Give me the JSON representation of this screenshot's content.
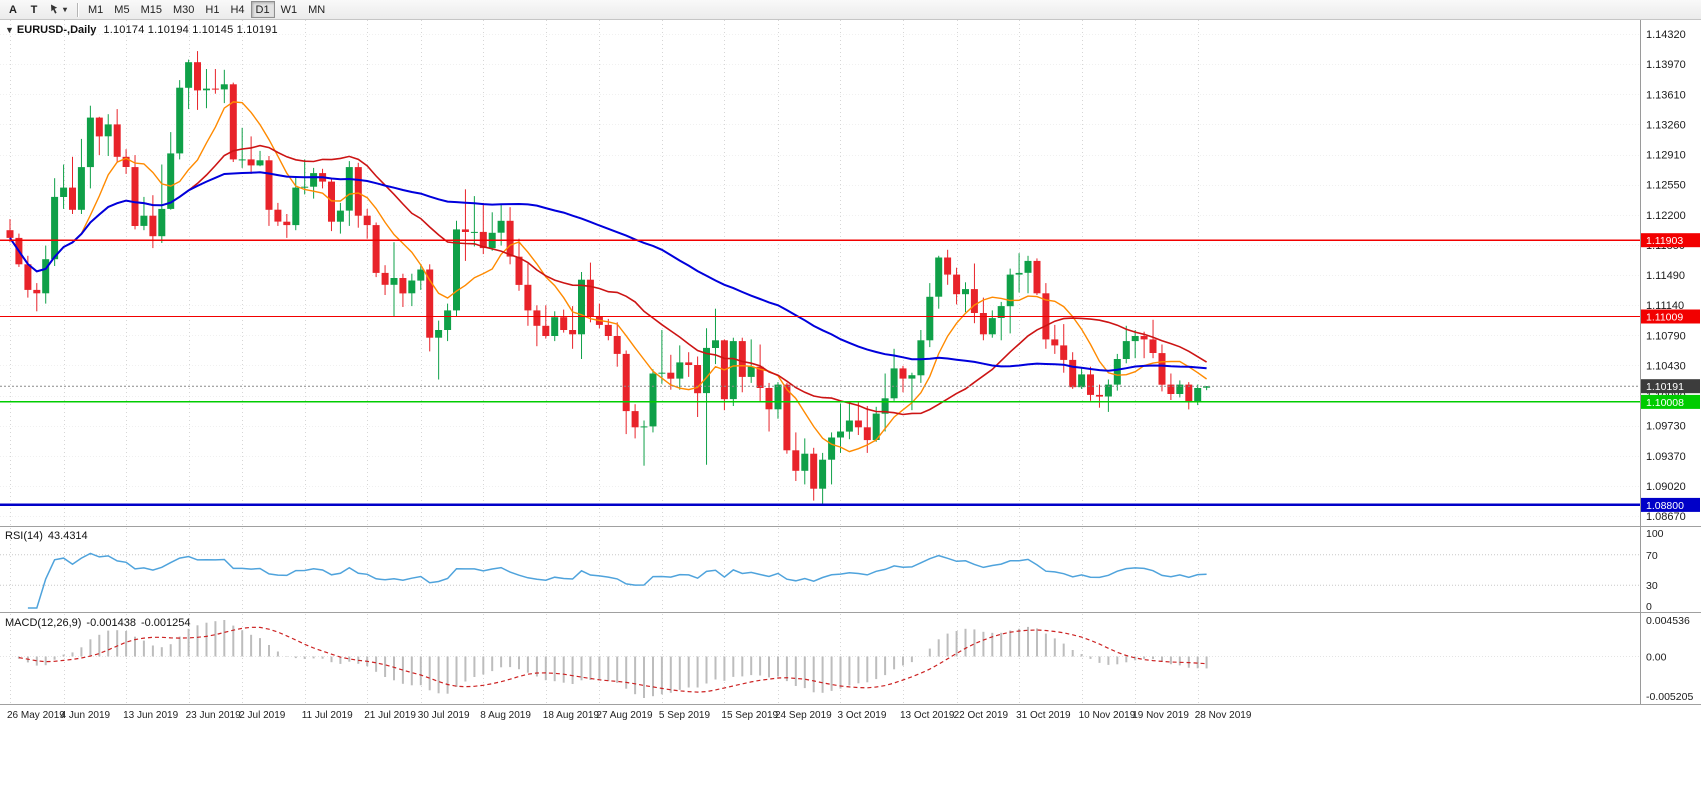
{
  "toolbar": {
    "tool_buttons": [
      {
        "id": "a",
        "label": "A"
      },
      {
        "id": "t",
        "label": "T"
      }
    ],
    "arrows_caret": "▾",
    "timeframes": [
      "M1",
      "M5",
      "M15",
      "M30",
      "H1",
      "H4",
      "D1",
      "W1",
      "MN"
    ],
    "active_timeframe": "D1"
  },
  "chart": {
    "symbol_title": "EURUSD-,Daily",
    "ohlc_line": "1.10174 1.10194 1.10145 1.10191",
    "dropdown_glyph": "▼",
    "price_axis": {
      "top_value": 1.1432,
      "bottom_value": 1.0867,
      "ticks": [
        "1.14320",
        "1.13970",
        "1.13610",
        "1.13260",
        "1.12910",
        "1.12550",
        "1.12200",
        "1.11850",
        "1.11490",
        "1.11140",
        "1.10790",
        "1.10430",
        "1.10080",
        "1.09730",
        "1.09370",
        "1.09020",
        "1.08670"
      ]
    },
    "levels": [
      {
        "price": 1.11903,
        "label": "1.11903",
        "color": "#F20000",
        "width": 1.2
      },
      {
        "price": 1.11009,
        "label": "1.11009",
        "color": "#F20000",
        "width": 1.2
      },
      {
        "price": 1.10008,
        "label": "1.10008",
        "color": "#00CC00",
        "width": 1.4
      },
      {
        "price": 1.088,
        "label": "1.08800",
        "color": "#0000C8",
        "width": 2.4
      }
    ],
    "current_price": {
      "value": 1.10191,
      "label": "1.10191",
      "tag_bg": "#3C3C3C",
      "line_color": "#8a8a8a"
    },
    "colors": {
      "up": "#0FA048",
      "down": "#E8232A",
      "ma_fast": "#FF8A00",
      "ma_mid": "#CC1414",
      "ma_slow": "#0000DC",
      "grid": "#D6D6D6"
    }
  },
  "indicators": {
    "rsi": {
      "name": "RSI(14)",
      "value": "43.4314",
      "axis": [
        "100",
        "70",
        "30",
        "0"
      ],
      "levels": [
        70,
        30
      ],
      "color": "#4FA3DC"
    },
    "macd": {
      "name": "MACD(12,26,9)",
      "value_main": "-0.001438",
      "value_signal": "-0.001254",
      "axis_top": "0.004536",
      "axis_zero": "0.00",
      "axis_bottom": "-0.005205",
      "hist_color": "#BDBDBD",
      "signal_color": "#CC2222"
    }
  },
  "chart_data": {
    "type": "candlestick",
    "symbol": "EURUSD-",
    "timeframe": "Daily",
    "title": "EURUSD-,Daily 1.10174 1.10194 1.10145 1.10191",
    "ylim": [
      1.0867,
      1.1432
    ],
    "x_ticks": [
      {
        "label": "26 May 2019",
        "i": 0
      },
      {
        "label": "4 Jun 2019",
        "i": 6
      },
      {
        "label": "13 Jun 2019",
        "i": 13
      },
      {
        "label": "23 Jun 2019",
        "i": 20
      },
      {
        "label": "2 Jul 2019",
        "i": 26
      },
      {
        "label": "11 Jul 2019",
        "i": 33
      },
      {
        "label": "21 Jul 2019",
        "i": 40
      },
      {
        "label": "30 Jul 2019",
        "i": 46
      },
      {
        "label": "8 Aug 2019",
        "i": 53
      },
      {
        "label": "18 Aug 2019",
        "i": 60
      },
      {
        "label": "27 Aug 2019",
        "i": 66
      },
      {
        "label": "5 Sep 2019",
        "i": 73
      },
      {
        "label": "15 Sep 2019",
        "i": 80
      },
      {
        "label": "24 Sep 2019",
        "i": 86
      },
      {
        "label": "3 Oct 2019",
        "i": 93
      },
      {
        "label": "13 Oct 2019",
        "i": 100
      },
      {
        "label": "22 Oct 2019",
        "i": 106
      },
      {
        "label": "31 Oct 2019",
        "i": 113
      },
      {
        "label": "10 Nov 2019",
        "i": 120
      },
      {
        "label": "19 Nov 2019",
        "i": 126
      },
      {
        "label": "28 Nov 2019",
        "i": 133
      }
    ],
    "candles": [
      [
        1.1202,
        1.1215,
        1.1188,
        1.1193
      ],
      [
        1.1193,
        1.1198,
        1.1159,
        1.1162
      ],
      [
        1.1162,
        1.1172,
        1.1123,
        1.1132
      ],
      [
        1.1132,
        1.114,
        1.1107,
        1.1128
      ],
      [
        1.1128,
        1.1184,
        1.1116,
        1.1168
      ],
      [
        1.1168,
        1.1263,
        1.116,
        1.1241
      ],
      [
        1.1241,
        1.1279,
        1.1227,
        1.1252
      ],
      [
        1.1252,
        1.1288,
        1.1221,
        1.1226
      ],
      [
        1.1226,
        1.1309,
        1.1221,
        1.1276
      ],
      [
        1.1276,
        1.1348,
        1.1251,
        1.1334
      ],
      [
        1.1334,
        1.1335,
        1.129,
        1.1312
      ],
      [
        1.1312,
        1.1338,
        1.1289,
        1.1326
      ],
      [
        1.1326,
        1.1344,
        1.1282,
        1.1288
      ],
      [
        1.1288,
        1.1297,
        1.1268,
        1.1276
      ],
      [
        1.1276,
        1.129,
        1.1203,
        1.1207
      ],
      [
        1.1207,
        1.1241,
        1.1202,
        1.1219
      ],
      [
        1.1219,
        1.1243,
        1.1181,
        1.1195
      ],
      [
        1.1195,
        1.1279,
        1.1187,
        1.1227
      ],
      [
        1.1227,
        1.1317,
        1.1226,
        1.1292
      ],
      [
        1.1292,
        1.1378,
        1.1285,
        1.1369
      ],
      [
        1.1369,
        1.1402,
        1.1344,
        1.1399
      ],
      [
        1.1399,
        1.1412,
        1.1343,
        1.1366
      ],
      [
        1.1366,
        1.1391,
        1.1345,
        1.1368
      ],
      [
        1.1368,
        1.1391,
        1.1362,
        1.1367
      ],
      [
        1.1367,
        1.139,
        1.1351,
        1.1373
      ],
      [
        1.1373,
        1.1375,
        1.1282,
        1.1285
      ],
      [
        1.1285,
        1.1322,
        1.1275,
        1.1285
      ],
      [
        1.1285,
        1.1312,
        1.1268,
        1.1278
      ],
      [
        1.1278,
        1.1295,
        1.1277,
        1.1284
      ],
      [
        1.1284,
        1.1289,
        1.1207,
        1.1226
      ],
      [
        1.1226,
        1.1234,
        1.1207,
        1.1212
      ],
      [
        1.1212,
        1.1221,
        1.1193,
        1.1208
      ],
      [
        1.1208,
        1.1264,
        1.1202,
        1.1252
      ],
      [
        1.1252,
        1.1285,
        1.1244,
        1.1253
      ],
      [
        1.1253,
        1.1275,
        1.1239,
        1.1269
      ],
      [
        1.1269,
        1.1274,
        1.1251,
        1.1259
      ],
      [
        1.1259,
        1.1263,
        1.1201,
        1.1212
      ],
      [
        1.1212,
        1.1234,
        1.1198,
        1.1225
      ],
      [
        1.1225,
        1.1283,
        1.1207,
        1.1276
      ],
      [
        1.1276,
        1.1281,
        1.1205,
        1.1219
      ],
      [
        1.1219,
        1.1227,
        1.1192,
        1.1208
      ],
      [
        1.1208,
        1.1211,
        1.1147,
        1.1152
      ],
      [
        1.1152,
        1.1161,
        1.1126,
        1.1138
      ],
      [
        1.1138,
        1.1188,
        1.1101,
        1.1146
      ],
      [
        1.1146,
        1.1151,
        1.1112,
        1.1128
      ],
      [
        1.1128,
        1.1151,
        1.1113,
        1.1143
      ],
      [
        1.1143,
        1.1162,
        1.1132,
        1.1156
      ],
      [
        1.1156,
        1.1162,
        1.106,
        1.1076
      ],
      [
        1.1076,
        1.1096,
        1.1027,
        1.1085
      ],
      [
        1.1085,
        1.1116,
        1.1072,
        1.1108
      ],
      [
        1.1108,
        1.1213,
        1.1101,
        1.1203
      ],
      [
        1.1203,
        1.125,
        1.1166,
        1.12
      ],
      [
        1.12,
        1.1242,
        1.1183,
        1.12
      ],
      [
        1.12,
        1.1234,
        1.1174,
        1.1181
      ],
      [
        1.1181,
        1.1223,
        1.1178,
        1.1199
      ],
      [
        1.1199,
        1.1232,
        1.1184,
        1.1213
      ],
      [
        1.1213,
        1.1229,
        1.1162,
        1.1171
      ],
      [
        1.1171,
        1.1192,
        1.1131,
        1.1138
      ],
      [
        1.1138,
        1.1163,
        1.109,
        1.1108
      ],
      [
        1.1108,
        1.1114,
        1.1066,
        1.109
      ],
      [
        1.109,
        1.1114,
        1.1075,
        1.1078
      ],
      [
        1.1078,
        1.1107,
        1.1072,
        1.11
      ],
      [
        1.11,
        1.1109,
        1.1082,
        1.1085
      ],
      [
        1.1085,
        1.1113,
        1.1063,
        1.108
      ],
      [
        1.108,
        1.1153,
        1.1051,
        1.1144
      ],
      [
        1.1144,
        1.1164,
        1.1094,
        1.1101
      ],
      [
        1.1101,
        1.1116,
        1.1087,
        1.1091
      ],
      [
        1.1091,
        1.1098,
        1.1073,
        1.1078
      ],
      [
        1.1078,
        1.1094,
        1.1042,
        1.1057
      ],
      [
        1.1057,
        1.1061,
        1.0963,
        1.099
      ],
      [
        1.099,
        1.0998,
        1.0958,
        1.0971
      ],
      [
        1.0971,
        1.0979,
        1.0926,
        1.0972
      ],
      [
        1.0972,
        1.1039,
        1.0965,
        1.1034
      ],
      [
        1.1034,
        1.1085,
        1.1022,
        1.1035
      ],
      [
        1.1035,
        1.1056,
        1.1015,
        1.1028
      ],
      [
        1.1028,
        1.1067,
        1.1015,
        1.1047
      ],
      [
        1.1047,
        1.1059,
        1.103,
        1.1044
      ],
      [
        1.1044,
        1.1054,
        1.0983,
        1.1011
      ],
      [
        1.1011,
        1.1087,
        1.0927,
        1.1064
      ],
      [
        1.1064,
        1.111,
        1.1045,
        1.1073
      ],
      [
        1.1073,
        1.1074,
        1.0991,
        1.1004
      ],
      [
        1.1004,
        1.1076,
        1.0996,
        1.1072
      ],
      [
        1.1072,
        1.1076,
        1.1012,
        1.103
      ],
      [
        1.103,
        1.1074,
        1.1023,
        1.1042
      ],
      [
        1.1042,
        1.1068,
        1.1,
        1.1017
      ],
      [
        1.1017,
        1.1023,
        1.0966,
        1.0992
      ],
      [
        1.0992,
        1.1024,
        1.0981,
        1.1021
      ],
      [
        1.1021,
        1.1023,
        1.094,
        1.0944
      ],
      [
        1.0944,
        1.0965,
        1.0908,
        1.092
      ],
      [
        1.092,
        1.0958,
        1.0904,
        1.094
      ],
      [
        1.094,
        1.0947,
        1.0885,
        1.0899
      ],
      [
        1.0899,
        1.0941,
        1.0879,
        1.0933
      ],
      [
        1.0933,
        1.0965,
        1.0904,
        1.0959
      ],
      [
        1.0959,
        1.0999,
        1.0941,
        1.0966
      ],
      [
        1.0966,
        1.0999,
        1.0957,
        1.0979
      ],
      [
        1.0979,
        1.1,
        1.0962,
        1.0971
      ],
      [
        1.0971,
        1.0996,
        1.0941,
        1.0956
      ],
      [
        1.0956,
        1.0995,
        1.0954,
        1.0987
      ],
      [
        1.0987,
        1.1034,
        1.0966,
        1.1005
      ],
      [
        1.1005,
        1.1063,
        1.1002,
        1.104
      ],
      [
        1.104,
        1.1043,
        1.1012,
        1.1028
      ],
      [
        1.1028,
        1.1035,
        1.0991,
        1.1032
      ],
      [
        1.1032,
        1.1085,
        1.1023,
        1.1073
      ],
      [
        1.1073,
        1.114,
        1.1065,
        1.1124
      ],
      [
        1.1124,
        1.1172,
        1.111,
        1.117
      ],
      [
        1.117,
        1.1179,
        1.1138,
        1.115
      ],
      [
        1.115,
        1.1158,
        1.1115,
        1.1127
      ],
      [
        1.1127,
        1.1141,
        1.1106,
        1.1133
      ],
      [
        1.1133,
        1.1163,
        1.1093,
        1.1105
      ],
      [
        1.1105,
        1.1123,
        1.1073,
        1.108
      ],
      [
        1.108,
        1.1108,
        1.1076,
        1.1099
      ],
      [
        1.1099,
        1.1118,
        1.1073,
        1.1113
      ],
      [
        1.1113,
        1.1157,
        1.1081,
        1.115
      ],
      [
        1.115,
        1.1175,
        1.1129,
        1.1152
      ],
      [
        1.1152,
        1.1172,
        1.1128,
        1.1166
      ],
      [
        1.1166,
        1.1169,
        1.1126,
        1.1128
      ],
      [
        1.1128,
        1.114,
        1.1063,
        1.1074
      ],
      [
        1.1074,
        1.1091,
        1.1057,
        1.1067
      ],
      [
        1.1067,
        1.1092,
        1.1035,
        1.105
      ],
      [
        1.105,
        1.1059,
        1.1016,
        1.1018
      ],
      [
        1.1018,
        1.1041,
        1.1016,
        1.1033
      ],
      [
        1.1033,
        1.1042,
        1.1002,
        1.1009
      ],
      [
        1.1009,
        1.1021,
        1.0994,
        1.1007
      ],
      [
        1.1007,
        1.1027,
        1.0989,
        1.1021
      ],
      [
        1.1021,
        1.1057,
        1.1014,
        1.1051
      ],
      [
        1.1051,
        1.109,
        1.1046,
        1.1072
      ],
      [
        1.1072,
        1.1085,
        1.1052,
        1.1078
      ],
      [
        1.1078,
        1.1083,
        1.1052,
        1.1074
      ],
      [
        1.1074,
        1.1097,
        1.1052,
        1.1058
      ],
      [
        1.1058,
        1.1068,
        1.1013,
        1.1021
      ],
      [
        1.1021,
        1.1034,
        1.1003,
        1.101
      ],
      [
        1.101,
        1.1026,
        1.1006,
        1.1021
      ],
      [
        1.1021,
        1.1024,
        1.0992,
        1.1001
      ],
      [
        1.1001,
        1.1021,
        1.0997,
        1.1017
      ],
      [
        1.10174,
        1.10194,
        1.10145,
        1.10191
      ]
    ]
  }
}
